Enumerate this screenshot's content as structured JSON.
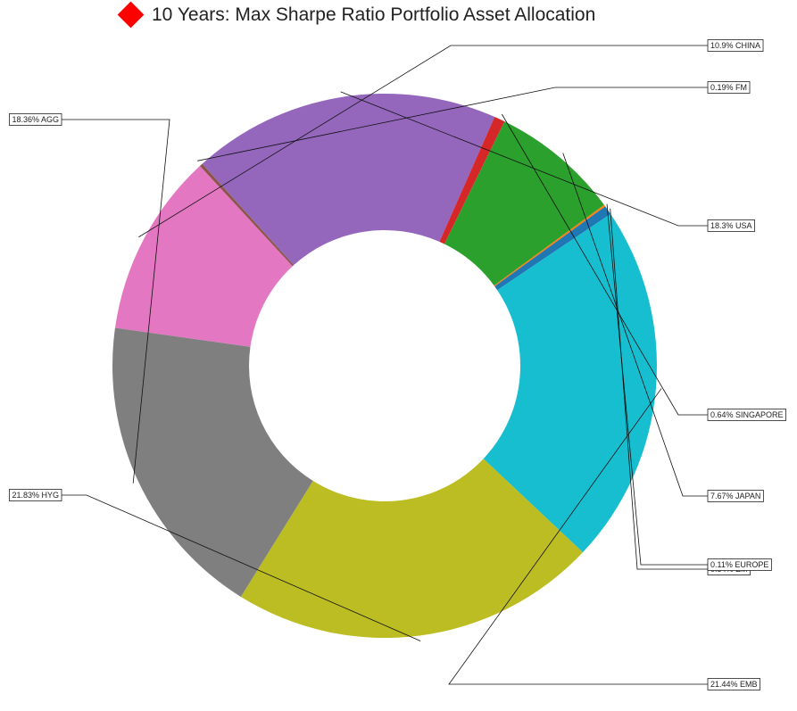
{
  "chart_data": {
    "type": "pie",
    "donut": true,
    "title": "10 Years: Max Sharpe Ratio Portfolio Asset Allocation",
    "title_marker_color": "#ff0000",
    "units": "%",
    "series": [
      {
        "name": "CHINA",
        "value": 10.9,
        "label": "10.9% CHINA",
        "color": "#e377c2"
      },
      {
        "name": "FM",
        "value": 0.19,
        "label": "0.19% FM",
        "color": "#8c564b"
      },
      {
        "name": "USA",
        "value": 18.3,
        "label": "18.3% USA",
        "color": "#9467bd"
      },
      {
        "name": "SINGAPORE",
        "value": 0.64,
        "label": "0.64% SINGAPORE",
        "color": "#d62728"
      },
      {
        "name": "JAPAN",
        "value": 7.67,
        "label": "7.67% JAPAN",
        "color": "#2ca02c"
      },
      {
        "name": "EUROPE",
        "value": 0.11,
        "label": "0.11% EUROPE",
        "color": "#ff7f0e"
      },
      {
        "name": "EM",
        "value": 0.54,
        "label": "0.54% EM",
        "color": "#1f77b4"
      },
      {
        "name": "EMB",
        "value": 21.44,
        "label": "21.44% EMB",
        "color": "#17becf"
      },
      {
        "name": "HYG",
        "value": 21.83,
        "label": "21.83% HYG",
        "color": "#bcbd22"
      },
      {
        "name": "AGG",
        "value": 18.36,
        "label": "18.36% AGG",
        "color": "#7f7f7f"
      }
    ]
  }
}
